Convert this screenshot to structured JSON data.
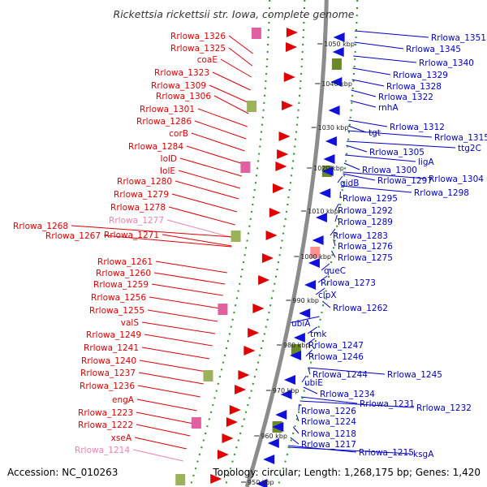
{
  "title": "Rickettsia rickettsii str. Iowa, complete genome",
  "footer": {
    "accession": "Accession: NC_010263",
    "topology": "Topology: circular; Length: 1,268,175 bp; Genes: 1,420"
  },
  "colors": {
    "left_label": "#e00000",
    "left_label_faded": "#f080b0",
    "right_label": "#0000cc",
    "backbone": "#8c8c8c",
    "dotted_ring": "#229922"
  },
  "ticks": [
    "1050 kbp",
    "1040 kbp",
    "1030 kbp",
    "1020 kbp",
    "1010 kbp",
    "1000 kbp",
    "990 kbp",
    "980 kbp",
    "970 kbp",
    "960 kbp",
    "950 kbp"
  ],
  "left_labels": [
    "Rrlowa_1326",
    "Rrlowa_1325",
    "coaE",
    "Rrlowa_1323",
    "Rrlowa_1309",
    "Rrlowa_1306",
    "Rrlowa_1301",
    "Rrlowa_1286",
    "corB",
    "Rrlowa_1284",
    "IolD",
    "IolE",
    "Rrlowa_1280",
    "Rrlowa_1279",
    "Rrlowa_1278",
    "Rrlowa_1277",
    "Rrlowa_1268",
    "Rrlowa_1267",
    "Rrlowa_1271",
    "Rrlowa_1261",
    "Rrlowa_1260",
    "Rrlowa_1259",
    "Rrlowa_1256",
    "Rrlowa_1255",
    "valS",
    "Rrlowa_1249",
    "Rrlowa_1241",
    "Rrlowa_1240",
    "Rrlowa_1237",
    "Rrlowa_1236",
    "engA",
    "Rrlowa_1223",
    "Rrlowa_1222",
    "xseA",
    "Rrlowa_1214"
  ],
  "right_labels": [
    "Rrlowa_1351",
    "Rrlowa_1345",
    "Rrlowa_1340",
    "Rrlowa_1329",
    "Rrlowa_1328",
    "Rrlowa_1322",
    "rnhA",
    "Rrlowa_1312",
    "Rrlowa_1315",
    "ttg2C",
    "tgt",
    "Rrlowa_1305",
    "ligA",
    "Rrlowa_1300",
    "Rrlowa_1297",
    "Rrlowa_1304",
    "gidB",
    "Rrlowa_1298",
    "Rrlowa_1295",
    "Rrlowa_1292",
    "Rrlowa_1289",
    "Rrlowa_1283",
    "Rrlowa_1276",
    "Rrlowa_1275",
    "queC",
    "Rrlowa_1273",
    "clpX",
    "Rrlowa_1262",
    "ubiA",
    "tmk",
    "Rrlowa_1247",
    "Rrlowa_1246",
    "Rrlowa_1244",
    "Rrlowa_1245",
    "ubiE",
    "Rrlowa_1234",
    "Rrlowa_1231",
    "Rrlowa_1232",
    "Rrlowa_1226",
    "Rrlowa_1224",
    "Rrlowa_1218",
    "Rrlowa_1217",
    "Rrlowa_1215",
    "ksgA"
  ]
}
